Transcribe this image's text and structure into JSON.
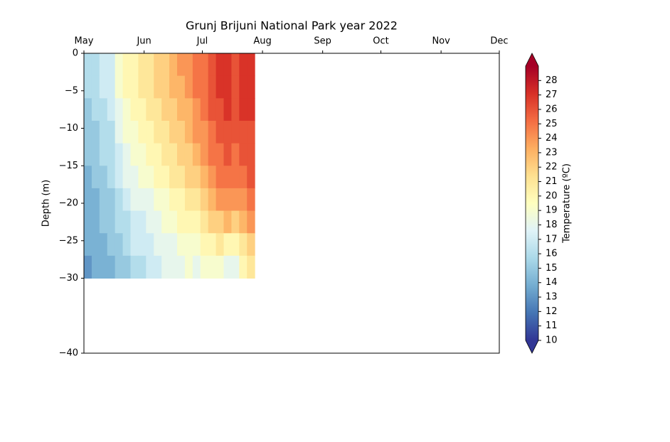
{
  "chart_data": {
    "type": "heatmap",
    "title": "Grunj Brijuni National Park year 2022",
    "y_label": "Depth (m)",
    "colorbar_label": "Temperature (ºC)",
    "x": [
      2,
      6,
      10,
      14,
      18,
      22,
      26,
      30,
      34,
      38,
      42,
      46,
      50,
      54,
      58,
      62,
      66,
      70,
      74,
      78,
      82,
      86
    ],
    "y": [
      -1.5,
      -4.5,
      -7.5,
      -10.5,
      -13.5,
      -16.5,
      -19.5,
      -22.5,
      -25.5,
      -28.5
    ],
    "z": [
      [
        16,
        16,
        17,
        17,
        19,
        20,
        20,
        21,
        21,
        22,
        22,
        23,
        24,
        24,
        25,
        25,
        26,
        27,
        27,
        26,
        27,
        27
      ],
      [
        16,
        16,
        17,
        17,
        19,
        20,
        20,
        21,
        21,
        22,
        22,
        23,
        23,
        24,
        25,
        25,
        26,
        27,
        27,
        26,
        27,
        27
      ],
      [
        15,
        16,
        16,
        17,
        18,
        19,
        20,
        20,
        21,
        21,
        22,
        22,
        23,
        23,
        24,
        25,
        26,
        26,
        27,
        26,
        27,
        27
      ],
      [
        15,
        15,
        16,
        16,
        18,
        19,
        19,
        20,
        20,
        21,
        21,
        22,
        22,
        23,
        24,
        24,
        25,
        26,
        26,
        26,
        26,
        26
      ],
      [
        15,
        15,
        16,
        16,
        17,
        18,
        19,
        19,
        20,
        20,
        21,
        21,
        22,
        22,
        23,
        24,
        25,
        25,
        26,
        25,
        26,
        26
      ],
      [
        14,
        15,
        15,
        16,
        17,
        18,
        18,
        19,
        19,
        20,
        20,
        21,
        21,
        22,
        22,
        23,
        24,
        25,
        25,
        25,
        25,
        26
      ],
      [
        14,
        14,
        15,
        15,
        16,
        17,
        18,
        18,
        18,
        19,
        19,
        20,
        20,
        21,
        21,
        22,
        23,
        24,
        24,
        24,
        24,
        25
      ],
      [
        14,
        14,
        15,
        15,
        16,
        16,
        17,
        17,
        18,
        18,
        19,
        19,
        20,
        20,
        20,
        21,
        22,
        22,
        23,
        22,
        23,
        24
      ],
      [
        14,
        14,
        14,
        15,
        15,
        16,
        17,
        17,
        17,
        18,
        18,
        18,
        19,
        19,
        19,
        20,
        20,
        21,
        20,
        20,
        21,
        22
      ],
      [
        13,
        14,
        14,
        14,
        15,
        15,
        16,
        16,
        17,
        17,
        18,
        18,
        18,
        19,
        18,
        19,
        19,
        19,
        18,
        18,
        20,
        21
      ]
    ],
    "xlim": [
      0,
      214
    ],
    "xticks": [
      {
        "value": 0,
        "label": "May"
      },
      {
        "value": 31,
        "label": "Jun"
      },
      {
        "value": 61,
        "label": "Jul"
      },
      {
        "value": 92,
        "label": "Aug"
      },
      {
        "value": 123,
        "label": "Sep"
      },
      {
        "value": 153,
        "label": "Oct"
      },
      {
        "value": 184,
        "label": "Nov"
      },
      {
        "value": 214,
        "label": "Dec"
      }
    ],
    "ylim": [
      -40,
      0
    ],
    "yticks": [
      0,
      {
        "value": -5,
        "label": "−5"
      },
      {
        "value": -10,
        "label": "−10"
      },
      {
        "value": -15,
        "label": "−15"
      },
      {
        "value": -20,
        "label": "−20"
      },
      {
        "value": -25,
        "label": "−25"
      },
      {
        "value": -30,
        "label": "−30"
      },
      {
        "value": -40,
        "label": "−40"
      }
    ],
    "clim": [
      10,
      29
    ],
    "cticks": [
      10,
      11,
      12,
      13,
      14,
      15,
      16,
      17,
      18,
      19,
      20,
      21,
      22,
      23,
      24,
      25,
      26,
      27,
      28
    ],
    "colormap": [
      "#313695",
      "#4575b4",
      "#74add1",
      "#abd9e9",
      "#e0f3f8",
      "#ffffbf",
      "#fee090",
      "#fdae61",
      "#f46d43",
      "#d73027",
      "#a50026"
    ]
  }
}
